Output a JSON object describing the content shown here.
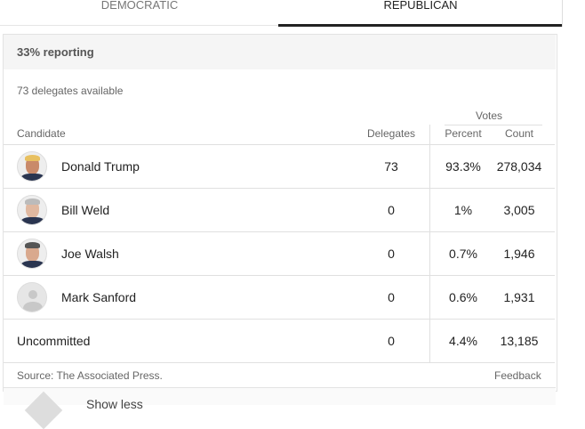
{
  "tabs": [
    "DEMOCRATIC",
    "REPUBLICAN"
  ],
  "reporting": "33% reporting",
  "delegates_available": "73 delegates available",
  "table": {
    "group_header": "Votes",
    "columns": [
      "Candidate",
      "Delegates",
      "Percent",
      "Count"
    ],
    "rows": [
      [
        "Donald Trump",
        "73",
        "93.3%",
        "278,034"
      ],
      [
        "Bill Weld",
        "0",
        "1%",
        "3,005"
      ],
      [
        "Joe Walsh",
        "0",
        "0.7%",
        "1,946"
      ],
      [
        "Mark Sanford",
        "0",
        "0.6%",
        "1,931"
      ],
      [
        "Uncommitted",
        "0",
        "4.4%",
        "13,185"
      ]
    ]
  },
  "source": "Source: The Associated Press.",
  "feedback": "Feedback",
  "show_less": "Show less"
}
